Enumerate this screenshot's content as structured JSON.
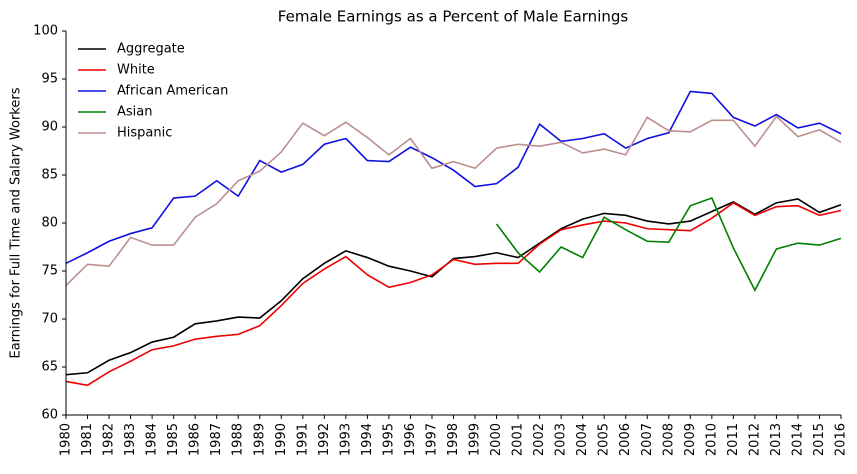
{
  "chart_data": {
    "type": "line",
    "title": "Female Earnings as a Percent of Male Earnings",
    "ylabel": "Earnings for Full Time and Salary Workers",
    "x": [
      1980,
      1981,
      1982,
      1983,
      1984,
      1985,
      1986,
      1987,
      1988,
      1989,
      1990,
      1991,
      1992,
      1993,
      1994,
      1995,
      1996,
      1997,
      1998,
      1999,
      2000,
      2001,
      2002,
      2003,
      2004,
      2005,
      2006,
      2007,
      2008,
      2009,
      2010,
      2011,
      2012,
      2013,
      2014,
      2015,
      2016
    ],
    "xlim": [
      1980,
      2016
    ],
    "xticks": [
      1980,
      1981,
      1982,
      1983,
      1984,
      1985,
      1986,
      1987,
      1988,
      1989,
      1990,
      1991,
      1992,
      1993,
      1994,
      1995,
      1996,
      1997,
      1998,
      1999,
      2000,
      2001,
      2002,
      2003,
      2004,
      2005,
      2006,
      2007,
      2008,
      2009,
      2010,
      2011,
      2012,
      2013,
      2014,
      2015,
      2016
    ],
    "ylim": [
      60,
      100
    ],
    "yticks": [
      60,
      65,
      70,
      75,
      80,
      85,
      90,
      95,
      100
    ],
    "grid": false,
    "legend": "upper left",
    "series": [
      {
        "name": "Aggregate",
        "color": "#000000",
        "values": [
          64.2,
          64.4,
          65.7,
          66.5,
          67.6,
          68.1,
          69.5,
          69.8,
          70.2,
          70.1,
          71.9,
          74.2,
          75.8,
          77.1,
          76.4,
          75.5,
          75.0,
          74.4,
          76.3,
          76.5,
          76.9,
          76.4,
          77.9,
          79.4,
          80.4,
          81.0,
          80.8,
          80.2,
          79.9,
          80.2,
          81.2,
          82.2,
          80.9,
          82.1,
          82.5,
          81.1,
          81.9
        ]
      },
      {
        "name": "White",
        "color": "#ee0000",
        "values": [
          63.5,
          63.1,
          64.5,
          65.6,
          66.8,
          67.2,
          67.9,
          68.2,
          68.4,
          69.3,
          71.4,
          73.7,
          75.2,
          76.5,
          74.6,
          73.3,
          73.8,
          74.6,
          76.2,
          75.7,
          75.8,
          75.8,
          77.8,
          79.3,
          79.8,
          80.2,
          80.0,
          79.4,
          79.3,
          79.2,
          80.5,
          82.1,
          80.8,
          81.7,
          81.8,
          80.8,
          81.3
        ]
      },
      {
        "name": "African American",
        "color": "#1010e0",
        "values": [
          75.8,
          76.9,
          78.1,
          78.9,
          79.5,
          82.6,
          82.8,
          84.4,
          82.8,
          86.5,
          85.3,
          86.1,
          88.2,
          88.8,
          86.5,
          86.4,
          87.9,
          86.8,
          85.5,
          83.8,
          84.1,
          85.8,
          90.3,
          88.5,
          88.8,
          89.3,
          87.8,
          88.8,
          89.4,
          93.7,
          93.5,
          91.0,
          90.1,
          91.3,
          89.9,
          90.4,
          89.3
        ]
      },
      {
        "name": "Asian",
        "color": "#008000",
        "values": [
          null,
          null,
          null,
          null,
          null,
          null,
          null,
          null,
          null,
          null,
          null,
          null,
          null,
          null,
          null,
          null,
          null,
          null,
          null,
          null,
          79.9,
          76.9,
          74.9,
          77.5,
          76.4,
          80.6,
          79.3,
          78.1,
          78.0,
          81.8,
          82.6,
          77.4,
          73.0,
          77.3,
          77.9,
          77.7,
          78.4
        ]
      },
      {
        "name": "Hispanic",
        "color": "#bc8f8f",
        "values": [
          73.5,
          75.7,
          75.5,
          78.5,
          77.7,
          77.7,
          80.6,
          82.0,
          84.4,
          85.4,
          87.4,
          90.4,
          89.1,
          90.5,
          88.9,
          87.1,
          88.8,
          85.7,
          86.4,
          85.7,
          87.8,
          88.2,
          88.0,
          88.4,
          87.3,
          87.7,
          87.1,
          91.0,
          89.6,
          89.5,
          90.7,
          90.7,
          88.0,
          91.1,
          89.0,
          89.7,
          88.4
        ]
      }
    ]
  }
}
